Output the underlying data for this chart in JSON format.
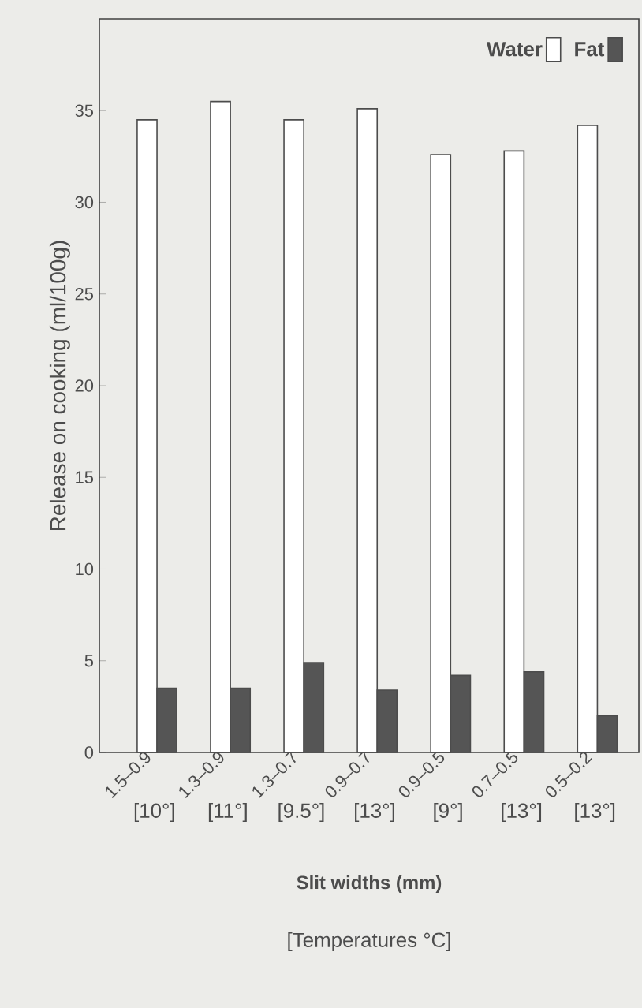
{
  "chart_data": {
    "type": "bar",
    "ylabel": "Release on cooking (ml/100g)",
    "xlabel": "Slit widths (mm)",
    "categories": [
      "1.5–0.9",
      "1.3–0.9",
      "1.3–0.7",
      "0.9–0.7",
      "0.9–0.5",
      "0.7–0.5",
      "0.5–0.2"
    ],
    "series": [
      {
        "name": "Water",
        "color": "#ffffff",
        "values": [
          34.5,
          35.5,
          34.5,
          35.1,
          32.6,
          32.8,
          34.2
        ]
      },
      {
        "name": "Fat",
        "color": "#555555",
        "values": [
          3.5,
          3.5,
          4.9,
          3.4,
          4.2,
          4.4,
          2.0
        ]
      }
    ],
    "ylim": [
      0,
      40
    ],
    "yticks": [
      0,
      5,
      10,
      15,
      20,
      25,
      30,
      35
    ],
    "legend": "top right",
    "grid": false,
    "annotations": [
      "[10°]",
      "[11°]",
      "[9.5°]",
      "[13°]",
      "[9°]",
      "[13°]",
      "[13°]",
      "[Temperatures °C]"
    ]
  }
}
